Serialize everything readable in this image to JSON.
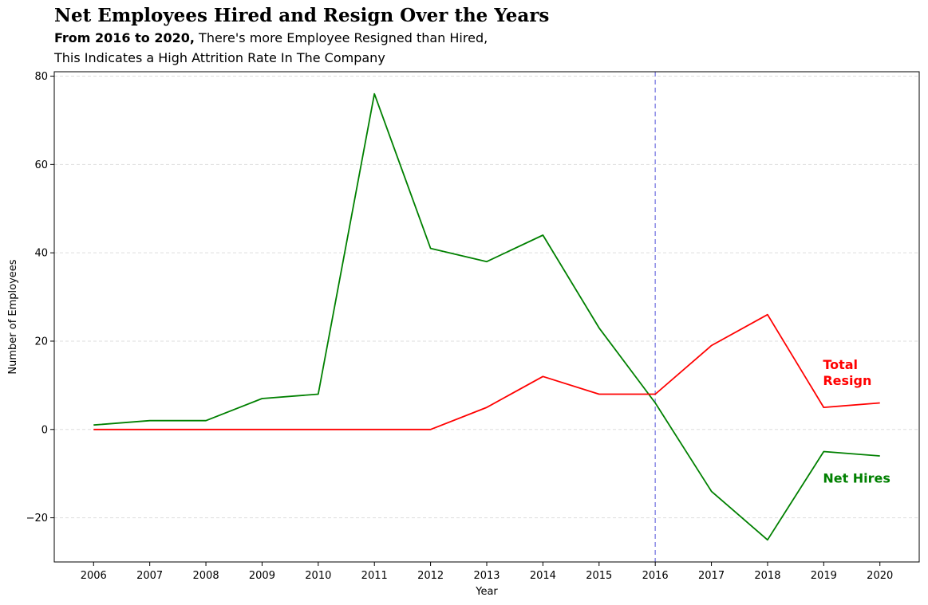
{
  "header": {
    "title": "Net Employees Hired and Resign Over the Years",
    "subtitle_bold": "From 2016 to 2020,",
    "subtitle_rest": " There's more Employee Resigned than Hired,",
    "subtitle_line2": "This Indicates a High Attrition Rate In The Company"
  },
  "chart_data": {
    "type": "line",
    "x": [
      2006,
      2007,
      2008,
      2009,
      2010,
      2011,
      2012,
      2013,
      2014,
      2015,
      2016,
      2017,
      2018,
      2019,
      2020
    ],
    "series": [
      {
        "name": "Net Hires",
        "color": "#008000",
        "values": [
          1,
          2,
          2,
          7,
          8,
          76,
          41,
          38,
          44,
          23,
          6,
          -14,
          -25,
          -5,
          -6
        ]
      },
      {
        "name": "Total Resign",
        "color": "#ff0000",
        "values": [
          0,
          0,
          0,
          0,
          0,
          0,
          0,
          5,
          12,
          8,
          8,
          19,
          26,
          5,
          6
        ]
      }
    ],
    "annotations": [
      {
        "text": "Net Hires",
        "color": "#008000",
        "x": 2019,
        "y": -11
      },
      {
        "text": "Total\nResign",
        "color": "#ff0000",
        "x": 2019,
        "y": 13
      }
    ],
    "vline": {
      "x": 2016,
      "color": "#8c8ce6",
      "style": "dashed"
    },
    "xlabel": "Year",
    "ylabel": "Number of Employees",
    "yticks": [
      -20,
      0,
      20,
      40,
      60,
      80
    ],
    "ylim": [
      -30,
      81
    ],
    "xlim": [
      2005.3,
      2020.7
    ],
    "grid": "y-dashed"
  }
}
